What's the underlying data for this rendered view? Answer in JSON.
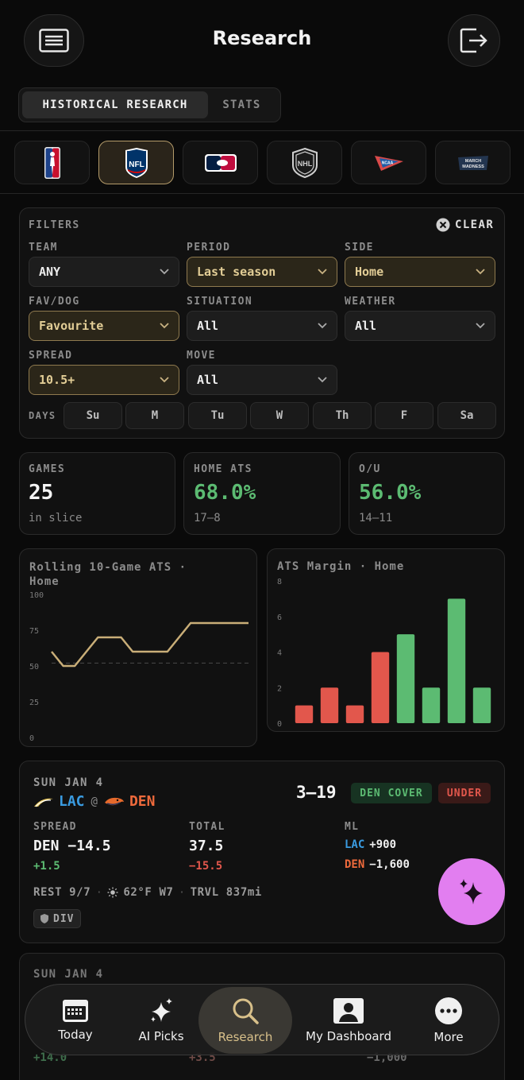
{
  "header": {
    "title": "Research"
  },
  "tabs": [
    {
      "label": "HISTORICAL RESEARCH",
      "active": true
    },
    {
      "label": "STATS",
      "active": false
    }
  ],
  "leagues": [
    {
      "name": "NBA",
      "active": false
    },
    {
      "name": "NFL",
      "active": true
    },
    {
      "name": "MLB",
      "active": false
    },
    {
      "name": "NHL",
      "active": false
    },
    {
      "name": "NCAA",
      "active": false
    },
    {
      "name": "MARCH MADNESS",
      "active": false
    }
  ],
  "filters": {
    "title": "FILTERS",
    "clear_label": "CLEAR",
    "team": {
      "label": "TEAM",
      "value": "ANY"
    },
    "period": {
      "label": "PERIOD",
      "value": "Last season"
    },
    "side": {
      "label": "SIDE",
      "value": "Home"
    },
    "favdog": {
      "label": "FAV/DOG",
      "value": "Favourite"
    },
    "situation": {
      "label": "SITUATION",
      "value": "All"
    },
    "weather": {
      "label": "WEATHER",
      "value": "All"
    },
    "spread": {
      "label": "SPREAD",
      "value": "10.5+"
    },
    "move": {
      "label": "MOVE",
      "value": "All"
    },
    "days_label": "DAYS",
    "days": [
      "Su",
      "M",
      "Tu",
      "W",
      "Th",
      "F",
      "Sa"
    ]
  },
  "stats": {
    "games": {
      "label": "GAMES",
      "value": "25",
      "sub": "in slice"
    },
    "home_ats": {
      "label": "HOME ATS",
      "value": "68.0%",
      "sub": "17–8"
    },
    "ou": {
      "label": "O/U",
      "value": "56.0%",
      "sub": "14–11"
    }
  },
  "colors": {
    "gold": "#c9ae78",
    "green": "#5cbb72",
    "red": "#e2574c",
    "fab": "#e27ef0"
  },
  "chart_data": [
    {
      "type": "line",
      "title": "Rolling 10-Game ATS · Home",
      "x": [
        1,
        2,
        3,
        4,
        5,
        6,
        7,
        8,
        9,
        10,
        11,
        12,
        13,
        14,
        15,
        16,
        17,
        18
      ],
      "series": [
        {
          "values": [
            60,
            50,
            50,
            60,
            70,
            70,
            70,
            60,
            60,
            60,
            60,
            70,
            80,
            80,
            80,
            80,
            80,
            80
          ]
        }
      ],
      "reference_line": 52,
      "ylim": [
        0,
        100
      ],
      "yticks": [
        "100",
        "75",
        "50",
        "25",
        "0"
      ]
    },
    {
      "type": "bar",
      "title": "ATS Margin · Home",
      "categories": [
        1,
        2,
        3,
        4,
        5,
        6,
        7,
        8
      ],
      "values": [
        1,
        2,
        1,
        4,
        5,
        2,
        7,
        2
      ],
      "bar_colors": [
        "red",
        "red",
        "red",
        "red",
        "green",
        "green",
        "green",
        "green"
      ],
      "ylim": [
        0,
        8
      ],
      "yticks": [
        "8",
        "6",
        "4",
        "2",
        "0"
      ]
    }
  ],
  "game": {
    "date": "SUN JAN 4",
    "away": "LAC",
    "at": "@",
    "home": "DEN",
    "score": "3–19",
    "badge_cover": "DEN COVER",
    "badge_ou": "UNDER",
    "spread_label": "SPREAD",
    "spread_value": "DEN −14.5",
    "spread_diff": "+1.5",
    "total_label": "TOTAL",
    "total_value": "37.5",
    "total_diff": "−15.5",
    "ml_label": "ML",
    "ml_away_team": "LAC",
    "ml_away_value": "+900",
    "ml_home_team": "DEN",
    "ml_home_value": "−1,600",
    "rest": "REST 9/7",
    "weather": "62°F W7",
    "travel": "TRVL 837mi",
    "tag": "DIV"
  },
  "game2": {
    "date": "SUN JAN 4",
    "peek_spread": "+14.0",
    "peek_total": "+3.5",
    "peek_ml": "−1,000"
  },
  "nav": [
    {
      "label": "Today",
      "icon": "calendar-icon"
    },
    {
      "label": "AI Picks",
      "icon": "sparkles-icon"
    },
    {
      "label": "Research",
      "icon": "search-icon",
      "active": true
    },
    {
      "label": "My Dashboard",
      "icon": "person-icon"
    },
    {
      "label": "More",
      "icon": "more-icon"
    }
  ]
}
